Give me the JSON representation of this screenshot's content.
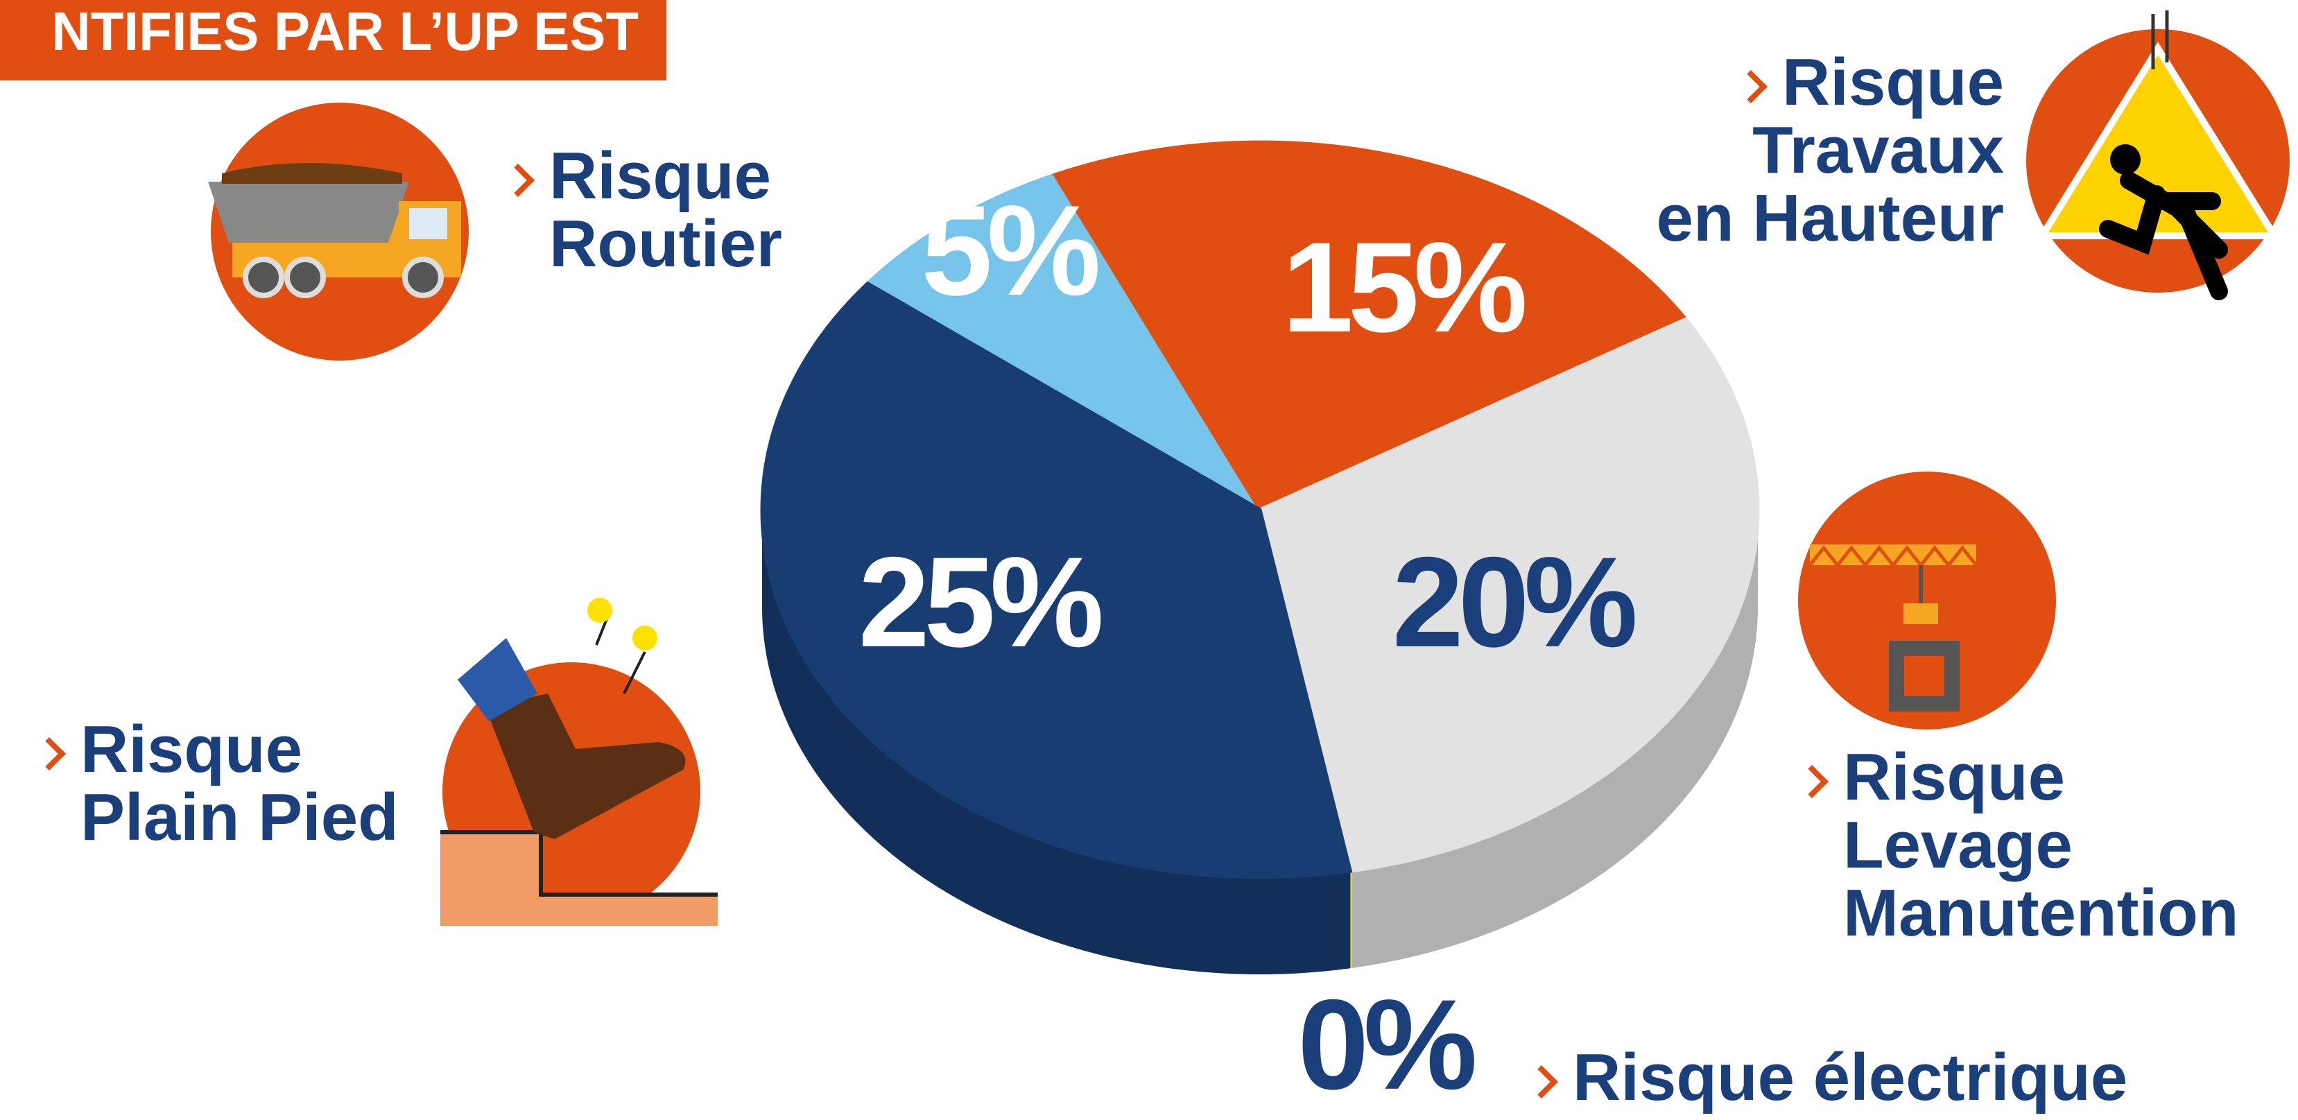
{
  "chart_data": {
    "type": "pie",
    "title": "NTIFIES PAR L’UP EST",
    "categories": [
      "Risque\nRoutier",
      "Risque\nTravaux\nen Hauteur",
      "Risque\nLevage\nManutention",
      "Risque électrique",
      "Risque\nPlain Pied"
    ],
    "values": [
      5,
      15,
      20,
      0,
      25
    ],
    "value_labels": [
      "5%",
      "15%",
      "20%",
      "0%",
      "25%"
    ],
    "colors": [
      "#76c4ea",
      "#e04e12",
      "#e2e2e2",
      "#f2d21b",
      "#173d72"
    ]
  }
}
